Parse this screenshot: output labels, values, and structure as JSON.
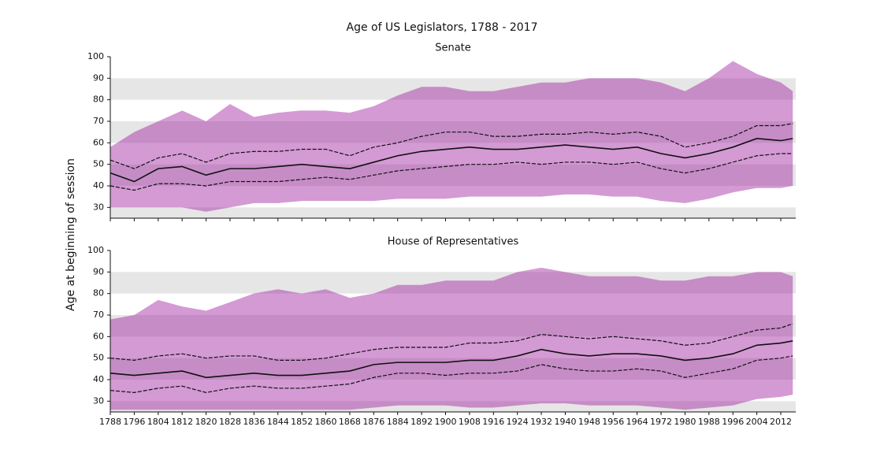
{
  "title": "Age of US Legislators, 1788 - 2017",
  "ylabel": "Age at beginning of session",
  "chart_data": [
    {
      "type": "line",
      "title": "Senate",
      "x": [
        1788,
        1796,
        1804,
        1812,
        1820,
        1828,
        1836,
        1844,
        1852,
        1860,
        1868,
        1876,
        1884,
        1892,
        1900,
        1908,
        1916,
        1924,
        1932,
        1940,
        1948,
        1956,
        1964,
        1972,
        1980,
        1988,
        1996,
        2004,
        2012,
        2016
      ],
      "range": {
        "color": "#a020a0",
        "low": [
          30,
          30,
          30,
          30,
          28,
          30,
          32,
          32,
          33,
          33,
          33,
          33,
          34,
          34,
          34,
          35,
          35,
          35,
          35,
          36,
          36,
          35,
          35,
          33,
          32,
          34,
          37,
          39,
          39,
          40
        ],
        "high": [
          58,
          65,
          70,
          75,
          70,
          78,
          72,
          74,
          75,
          75,
          74,
          77,
          82,
          86,
          86,
          84,
          84,
          86,
          88,
          88,
          90,
          90,
          90,
          88,
          84,
          90,
          98,
          92,
          88,
          84
        ]
      },
      "series": [
        {
          "color": "#111111",
          "dashed": false,
          "values": [
            46,
            42,
            48,
            49,
            45,
            48,
            48,
            49,
            50,
            49,
            48,
            51,
            54,
            56,
            57,
            58,
            57,
            57,
            58,
            59,
            58,
            57,
            58,
            55,
            53,
            55,
            58,
            62,
            61,
            62
          ]
        },
        {
          "color": "#111111",
          "dashed": true,
          "values": [
            40,
            38,
            41,
            41,
            40,
            42,
            42,
            42,
            43,
            44,
            43,
            45,
            47,
            48,
            49,
            50,
            50,
            51,
            50,
            51,
            51,
            50,
            51,
            48,
            46,
            48,
            51,
            54,
            55,
            55
          ]
        },
        {
          "color": "#111111",
          "dashed": true,
          "values": [
            52,
            48,
            53,
            55,
            51,
            55,
            56,
            56,
            57,
            57,
            54,
            58,
            60,
            63,
            65,
            65,
            63,
            63,
            64,
            64,
            65,
            64,
            65,
            63,
            58,
            60,
            63,
            68,
            68,
            69
          ]
        }
      ],
      "xlim": [
        1788,
        2017
      ],
      "xticks": [
        1788,
        1796,
        1804,
        1812,
        1820,
        1828,
        1836,
        1844,
        1852,
        1860,
        1868,
        1876,
        1884,
        1892,
        1900,
        1908,
        1916,
        1924,
        1932,
        1940,
        1948,
        1956,
        1964,
        1972,
        1980,
        1988,
        1996,
        2004,
        2012
      ],
      "xtick_labels": false,
      "ylim": [
        25,
        100
      ],
      "yticks": [
        30,
        40,
        50,
        60,
        70,
        80,
        90,
        100
      ],
      "bands": [
        [
          25,
          30
        ],
        [
          40,
          50
        ],
        [
          60,
          70
        ],
        [
          80,
          90
        ]
      ],
      "band_color": "#e6e6e6"
    },
    {
      "type": "line",
      "title": "House of Representatives",
      "x": [
        1788,
        1796,
        1804,
        1812,
        1820,
        1828,
        1836,
        1844,
        1852,
        1860,
        1868,
        1876,
        1884,
        1892,
        1900,
        1908,
        1916,
        1924,
        1932,
        1940,
        1948,
        1956,
        1964,
        1972,
        1980,
        1988,
        1996,
        2004,
        2012,
        2016
      ],
      "range": {
        "color": "#a020a0",
        "low": [
          26,
          26,
          26,
          26,
          26,
          26,
          26,
          26,
          26,
          26,
          26,
          27,
          28,
          28,
          28,
          27,
          27,
          28,
          29,
          29,
          28,
          28,
          28,
          27,
          26,
          27,
          28,
          31,
          32,
          33
        ],
        "high": [
          68,
          70,
          77,
          74,
          72,
          76,
          80,
          82,
          80,
          82,
          78,
          80,
          84,
          84,
          86,
          86,
          86,
          90,
          92,
          90,
          88,
          88,
          88,
          86,
          86,
          88,
          88,
          90,
          90,
          88
        ]
      },
      "series": [
        {
          "color": "#111111",
          "dashed": false,
          "values": [
            43,
            42,
            43,
            44,
            41,
            42,
            43,
            42,
            42,
            43,
            44,
            47,
            48,
            48,
            48,
            49,
            49,
            51,
            54,
            52,
            51,
            52,
            52,
            51,
            49,
            50,
            52,
            56,
            57,
            58
          ]
        },
        {
          "color": "#111111",
          "dashed": true,
          "values": [
            35,
            34,
            36,
            37,
            34,
            36,
            37,
            36,
            36,
            37,
            38,
            41,
            43,
            43,
            42,
            43,
            43,
            44,
            47,
            45,
            44,
            44,
            45,
            44,
            41,
            43,
            45,
            49,
            50,
            51
          ]
        },
        {
          "color": "#111111",
          "dashed": true,
          "values": [
            50,
            49,
            51,
            52,
            50,
            51,
            51,
            49,
            49,
            50,
            52,
            54,
            55,
            55,
            55,
            57,
            57,
            58,
            61,
            60,
            59,
            60,
            59,
            58,
            56,
            57,
            60,
            63,
            64,
            66
          ]
        }
      ],
      "xlim": [
        1788,
        2017
      ],
      "xticks": [
        1788,
        1796,
        1804,
        1812,
        1820,
        1828,
        1836,
        1844,
        1852,
        1860,
        1868,
        1876,
        1884,
        1892,
        1900,
        1908,
        1916,
        1924,
        1932,
        1940,
        1948,
        1956,
        1964,
        1972,
        1980,
        1988,
        1996,
        2004,
        2012
      ],
      "xtick_labels": true,
      "ylim": [
        25,
        100
      ],
      "yticks": [
        30,
        40,
        50,
        60,
        70,
        80,
        90,
        100
      ],
      "bands": [
        [
          25,
          30
        ],
        [
          40,
          50
        ],
        [
          60,
          70
        ],
        [
          80,
          90
        ]
      ],
      "band_color": "#e6e6e6"
    }
  ]
}
